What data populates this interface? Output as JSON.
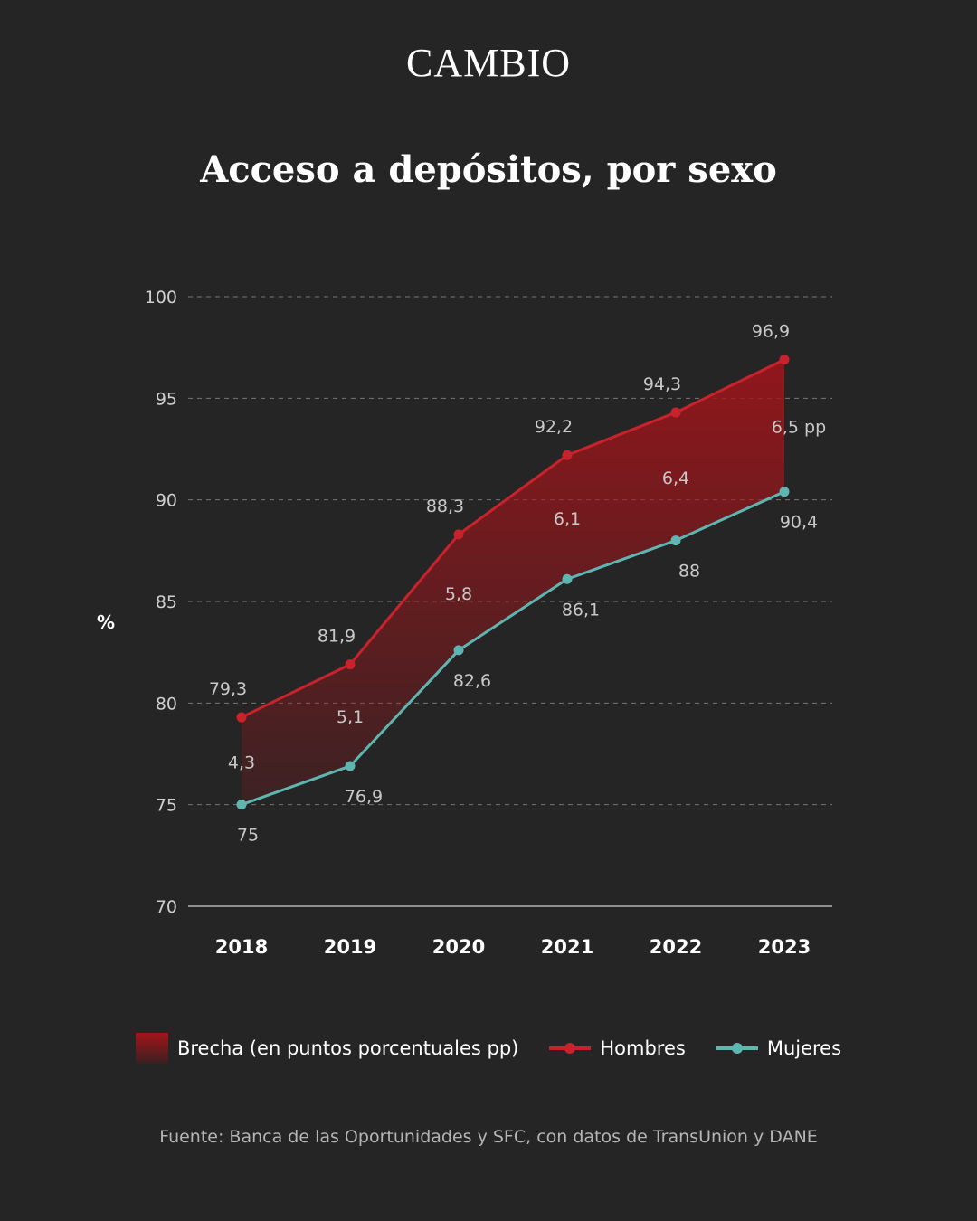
{
  "brand": "CAMBIO",
  "title": "Acceso a depósitos, por sexo",
  "source": "Fuente: Banca de las Oportunidades y SFC, con datos de TransUnion y DANE",
  "colors": {
    "background": "#252525",
    "hombres": "#c8232c",
    "mujeres": "#5fb5b0",
    "gap": "#a3141a"
  },
  "chart_data": {
    "type": "line",
    "title": "Acceso a depósitos, por sexo",
    "xlabel": "",
    "ylabel": "%",
    "ylim": [
      70,
      100
    ],
    "yticks": [
      "70",
      "75",
      "80",
      "85",
      "90",
      "95",
      "100"
    ],
    "grid": "horizontal dashed",
    "legend_placement": "bottom",
    "categories": [
      "2018",
      "2019",
      "2020",
      "2021",
      "2022",
      "2023"
    ],
    "series": [
      {
        "name": "Hombres",
        "values": [
          79.3,
          81.9,
          88.3,
          92.2,
          94.3,
          96.9
        ],
        "labels": [
          "79,3",
          "81,9",
          "88,3",
          "92,2",
          "94,3",
          "96,9"
        ]
      },
      {
        "name": "Mujeres",
        "values": [
          75,
          76.9,
          82.6,
          86.1,
          88,
          90.4
        ],
        "labels": [
          "75",
          "76,9",
          "82,6",
          "86,1",
          "88",
          "90,4"
        ]
      }
    ],
    "gap": {
      "name": "Brecha (en puntos porcentuales pp)",
      "values": [
        4.3,
        5.1,
        5.8,
        6.1,
        6.4,
        6.5
      ],
      "labels": [
        "4,3",
        "5,1",
        "5,8",
        "6,1",
        "6,4",
        "6,5 pp"
      ]
    }
  },
  "legend": {
    "gap": "Brecha (en puntos porcentuales pp)",
    "hombres": "Hombres",
    "mujeres": "Mujeres"
  }
}
